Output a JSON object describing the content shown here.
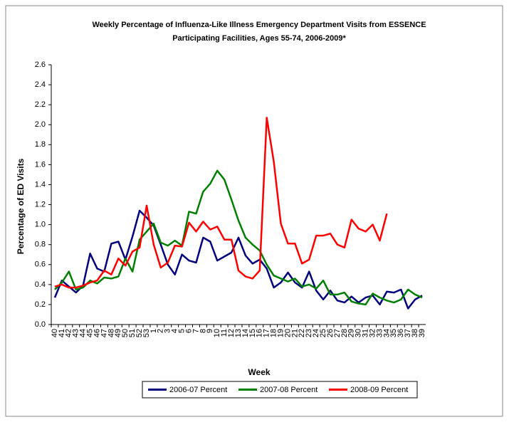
{
  "chart_data": {
    "type": "line",
    "title": [
      "Weekly Percentage of Influenza-Like Illness Emergency Department Visits from ESSENCE",
      "Participating Facilities, Ages 55-74, 2006-2009*"
    ],
    "x_label": "Week",
    "y_label": "Percentage of ED Visits",
    "categories": [
      "40",
      "41",
      "42",
      "43",
      "44",
      "45",
      "46",
      "47",
      "48",
      "49",
      "50",
      "51",
      "52",
      "53",
      "1",
      "2",
      "3",
      "4",
      "5",
      "6",
      "7",
      "8",
      "9",
      "10",
      "11",
      "12",
      "13",
      "14",
      "15",
      "16",
      "17",
      "18",
      "19",
      "20",
      "21",
      "22",
      "23",
      "24",
      "25",
      "26",
      "27",
      "28",
      "29",
      "30",
      "31",
      "32",
      "33",
      "34",
      "35",
      "36",
      "37",
      "38",
      "39"
    ],
    "series": [
      {
        "name": "2006-07 Percent",
        "color": "#000080",
        "values": [
          0.27,
          0.44,
          0.38,
          0.32,
          0.39,
          0.71,
          0.56,
          0.53,
          0.81,
          0.83,
          0.65,
          0.88,
          1.14,
          1.07,
          0.99,
          0.8,
          0.6,
          0.5,
          0.7,
          0.64,
          0.62,
          0.87,
          0.83,
          0.64,
          0.68,
          0.72,
          0.87,
          0.69,
          0.61,
          0.65,
          0.56,
          0.37,
          0.42,
          0.52,
          0.42,
          0.37,
          0.53,
          0.34,
          0.25,
          0.34,
          0.24,
          0.22,
          0.28,
          0.22,
          0.27,
          0.29,
          0.2,
          0.33,
          0.32,
          0.35,
          0.16,
          0.25,
          0.29
        ]
      },
      {
        "name": "2007-08 Percent",
        "color": "#008000",
        "values": [
          0.35,
          0.42,
          0.53,
          0.35,
          0.37,
          0.44,
          0.41,
          0.47,
          0.46,
          0.48,
          0.66,
          0.53,
          0.85,
          0.93,
          1.01,
          0.82,
          0.79,
          0.84,
          0.79,
          1.13,
          1.11,
          1.33,
          1.41,
          1.54,
          1.45,
          1.25,
          1.04,
          0.87,
          0.8,
          0.74,
          0.6,
          0.49,
          0.46,
          0.43,
          0.46,
          0.38,
          0.4,
          0.36,
          0.44,
          0.3,
          0.3,
          0.32,
          0.23,
          0.21,
          0.2,
          0.31,
          0.27,
          0.24,
          0.22,
          0.25,
          0.35,
          0.3,
          0.27
        ]
      },
      {
        "name": "2008-09 Percent",
        "color": "#ff0000",
        "values": [
          0.38,
          0.4,
          0.37,
          0.37,
          0.39,
          0.42,
          0.44,
          0.54,
          0.5,
          0.66,
          0.59,
          0.73,
          0.77,
          1.19,
          0.8,
          0.57,
          0.62,
          0.79,
          0.78,
          1.02,
          0.93,
          1.03,
          0.95,
          0.98,
          0.85,
          0.85,
          0.54,
          0.48,
          0.46,
          0.54,
          2.07,
          1.63,
          1.01,
          0.81,
          0.81,
          0.61,
          0.65,
          0.89,
          0.89,
          0.91,
          0.8,
          0.77,
          1.05,
          0.96,
          0.93,
          1.0,
          0.84,
          1.11,
          null,
          null,
          null,
          null,
          null
        ]
      }
    ],
    "ylim": [
      0,
      2.6
    ],
    "yticks": [
      {
        "value": 0,
        "label": "0.0"
      },
      0.2,
      0.4,
      0.6,
      0.8,
      {
        "value": 1,
        "label": "1.0"
      },
      1.2,
      1.4,
      1.6,
      1.8,
      {
        "value": 2,
        "label": "2.0"
      },
      2.2,
      2.4,
      2.6
    ],
    "grid": false,
    "legend": "bottom"
  }
}
